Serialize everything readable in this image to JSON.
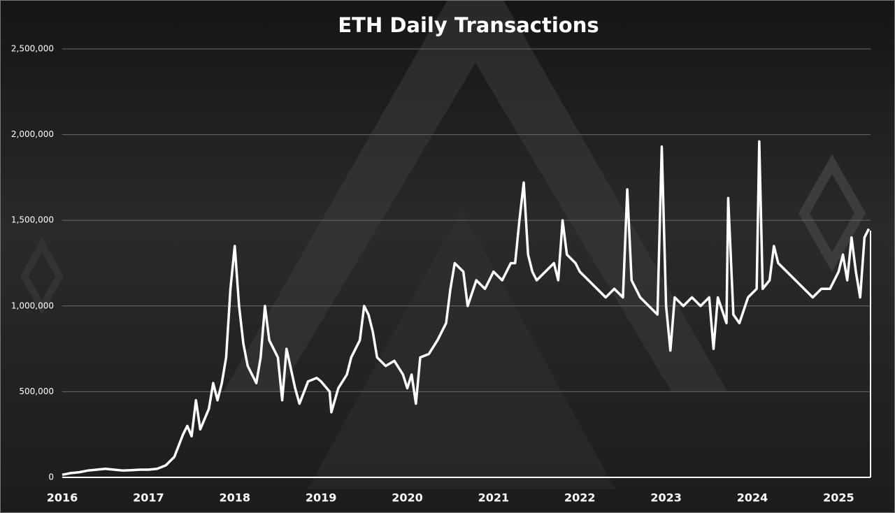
{
  "chart_data": {
    "type": "line",
    "title": "ETH Daily Transactions",
    "x": [
      2016.0,
      2016.1,
      2016.2,
      2016.3,
      2016.4,
      2016.5,
      2016.6,
      2016.7,
      2016.8,
      2016.9,
      2017.0,
      2017.1,
      2017.2,
      2017.3,
      2017.4,
      2017.45,
      2017.5,
      2017.55,
      2017.6,
      2017.7,
      2017.75,
      2017.8,
      2017.85,
      2017.9,
      2017.95,
      2018.0,
      2018.05,
      2018.1,
      2018.15,
      2018.25,
      2018.3,
      2018.35,
      2018.4,
      2018.5,
      2018.55,
      2018.6,
      2018.7,
      2018.75,
      2018.85,
      2018.95,
      2019.0,
      2019.1,
      2019.12,
      2019.2,
      2019.3,
      2019.35,
      2019.45,
      2019.5,
      2019.55,
      2019.6,
      2019.65,
      2019.75,
      2019.85,
      2019.95,
      2020.0,
      2020.05,
      2020.1,
      2020.15,
      2020.25,
      2020.35,
      2020.45,
      2020.5,
      2020.55,
      2020.65,
      2020.7,
      2020.8,
      2020.9,
      2021.0,
      2021.1,
      2021.2,
      2021.25,
      2021.3,
      2021.35,
      2021.4,
      2021.45,
      2021.5,
      2021.6,
      2021.7,
      2021.75,
      2021.8,
      2021.85,
      2021.95,
      2022.0,
      2022.1,
      2022.2,
      2022.3,
      2022.4,
      2022.5,
      2022.55,
      2022.6,
      2022.7,
      2022.8,
      2022.9,
      2022.95,
      2023.0,
      2023.05,
      2023.1,
      2023.2,
      2023.3,
      2023.4,
      2023.5,
      2023.55,
      2023.6,
      2023.7,
      2023.72,
      2023.78,
      2023.85,
      2023.95,
      2024.05,
      2024.08,
      2024.12,
      2024.2,
      2024.25,
      2024.3,
      2024.4,
      2024.5,
      2024.6,
      2024.7,
      2024.8,
      2024.9,
      2025.0,
      2025.05,
      2025.1,
      2025.15,
      2025.2,
      2025.25,
      2025.3,
      2025.35
    ],
    "values": [
      15000,
      25000,
      30000,
      40000,
      45000,
      50000,
      45000,
      40000,
      42000,
      45000,
      45000,
      50000,
      70000,
      120000,
      250000,
      300000,
      240000,
      450000,
      280000,
      400000,
      550000,
      450000,
      550000,
      700000,
      1100000,
      1350000,
      1000000,
      780000,
      650000,
      550000,
      700000,
      1000000,
      800000,
      700000,
      450000,
      750000,
      520000,
      430000,
      560000,
      580000,
      560000,
      500000,
      380000,
      520000,
      600000,
      700000,
      800000,
      1000000,
      950000,
      850000,
      700000,
      650000,
      680000,
      600000,
      520000,
      600000,
      430000,
      700000,
      720000,
      800000,
      900000,
      1100000,
      1250000,
      1200000,
      1000000,
      1150000,
      1100000,
      1200000,
      1150000,
      1250000,
      1250000,
      1500000,
      1720000,
      1300000,
      1200000,
      1150000,
      1200000,
      1250000,
      1150000,
      1500000,
      1300000,
      1250000,
      1200000,
      1150000,
      1100000,
      1050000,
      1100000,
      1050000,
      1680000,
      1150000,
      1050000,
      1000000,
      950000,
      1930000,
      1000000,
      740000,
      1050000,
      1000000,
      1050000,
      1000000,
      1050000,
      750000,
      1050000,
      900000,
      1630000,
      950000,
      900000,
      1050000,
      1100000,
      1960000,
      1100000,
      1150000,
      1350000,
      1250000,
      1200000,
      1150000,
      1100000,
      1050000,
      1100000,
      1100000,
      1200000,
      1300000,
      1150000,
      1400000,
      1200000,
      1050000,
      1400000,
      1450000
    ],
    "color": "#ffffff",
    "xlim": [
      2016,
      2025.37
    ],
    "xticks": [
      2016,
      2017,
      2018,
      2019,
      2020,
      2021,
      2022,
      2023,
      2024,
      2025
    ],
    "ylim": [
      0,
      2500000
    ],
    "yticks": [
      0,
      {
        "value": 500000,
        "label": "500,000"
      },
      {
        "value": 1000000,
        "label": "1,000,000"
      },
      {
        "value": 1500000,
        "label": "1,500,000"
      },
      {
        "value": 2000000,
        "label": "2,000,000"
      },
      {
        "value": 2500000,
        "label": "2,500,000"
      }
    ],
    "grid": true
  }
}
